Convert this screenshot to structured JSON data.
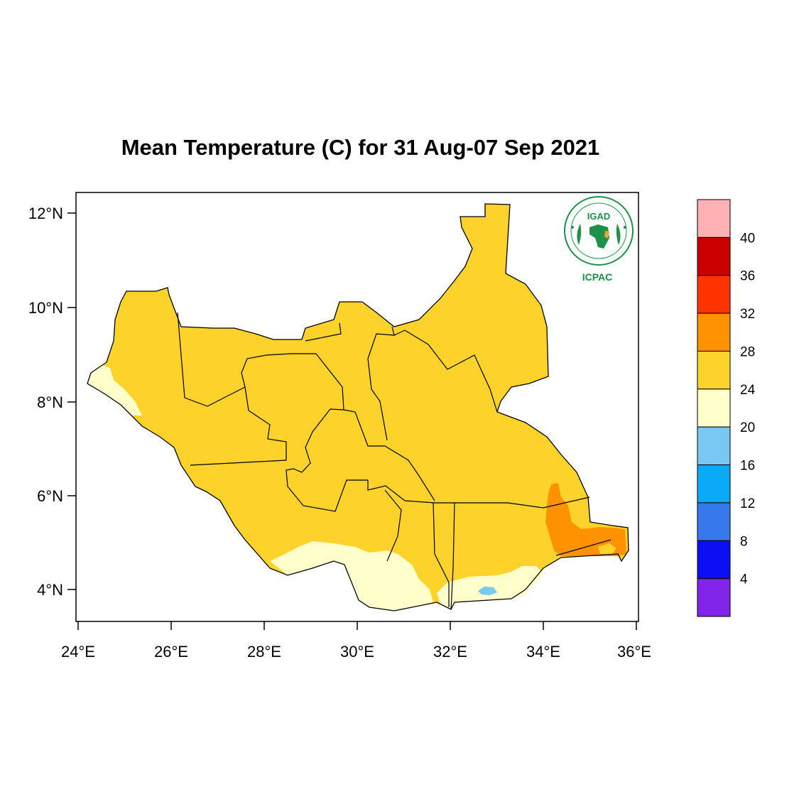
{
  "map": {
    "title": "Mean Temperature (C) for 31 Aug-07 Sep 2021",
    "x_ticks": [
      "24°E",
      "26°E",
      "28°E",
      "30°E",
      "32°E",
      "34°E",
      "36°E"
    ],
    "y_ticks": [
      "12°N",
      "10°N",
      "8°N",
      "6°N",
      "4°N"
    ],
    "logo": {
      "text_main": "IGAD",
      "text_sub": "ICPAC"
    },
    "colors": {
      "warm_fill": "#fcd22b",
      "mild_fill": "#ffffcc",
      "hot_fill": "#ff9200",
      "cool_fill": "#79c9f3",
      "border": "#000000",
      "logo_green": "#1e9148"
    }
  },
  "legend": {
    "tick_labels": [
      "40",
      "36",
      "32",
      "28",
      "24",
      "20",
      "16",
      "12",
      "8",
      "4"
    ],
    "colors": [
      "#ffb1b3",
      "#cc0000",
      "#ff3300",
      "#ff9200",
      "#fcd22b",
      "#ffffcc",
      "#78c8f3",
      "#0aaaf8",
      "#3778ed",
      "#0c0ef3",
      "#8224ea"
    ]
  }
}
